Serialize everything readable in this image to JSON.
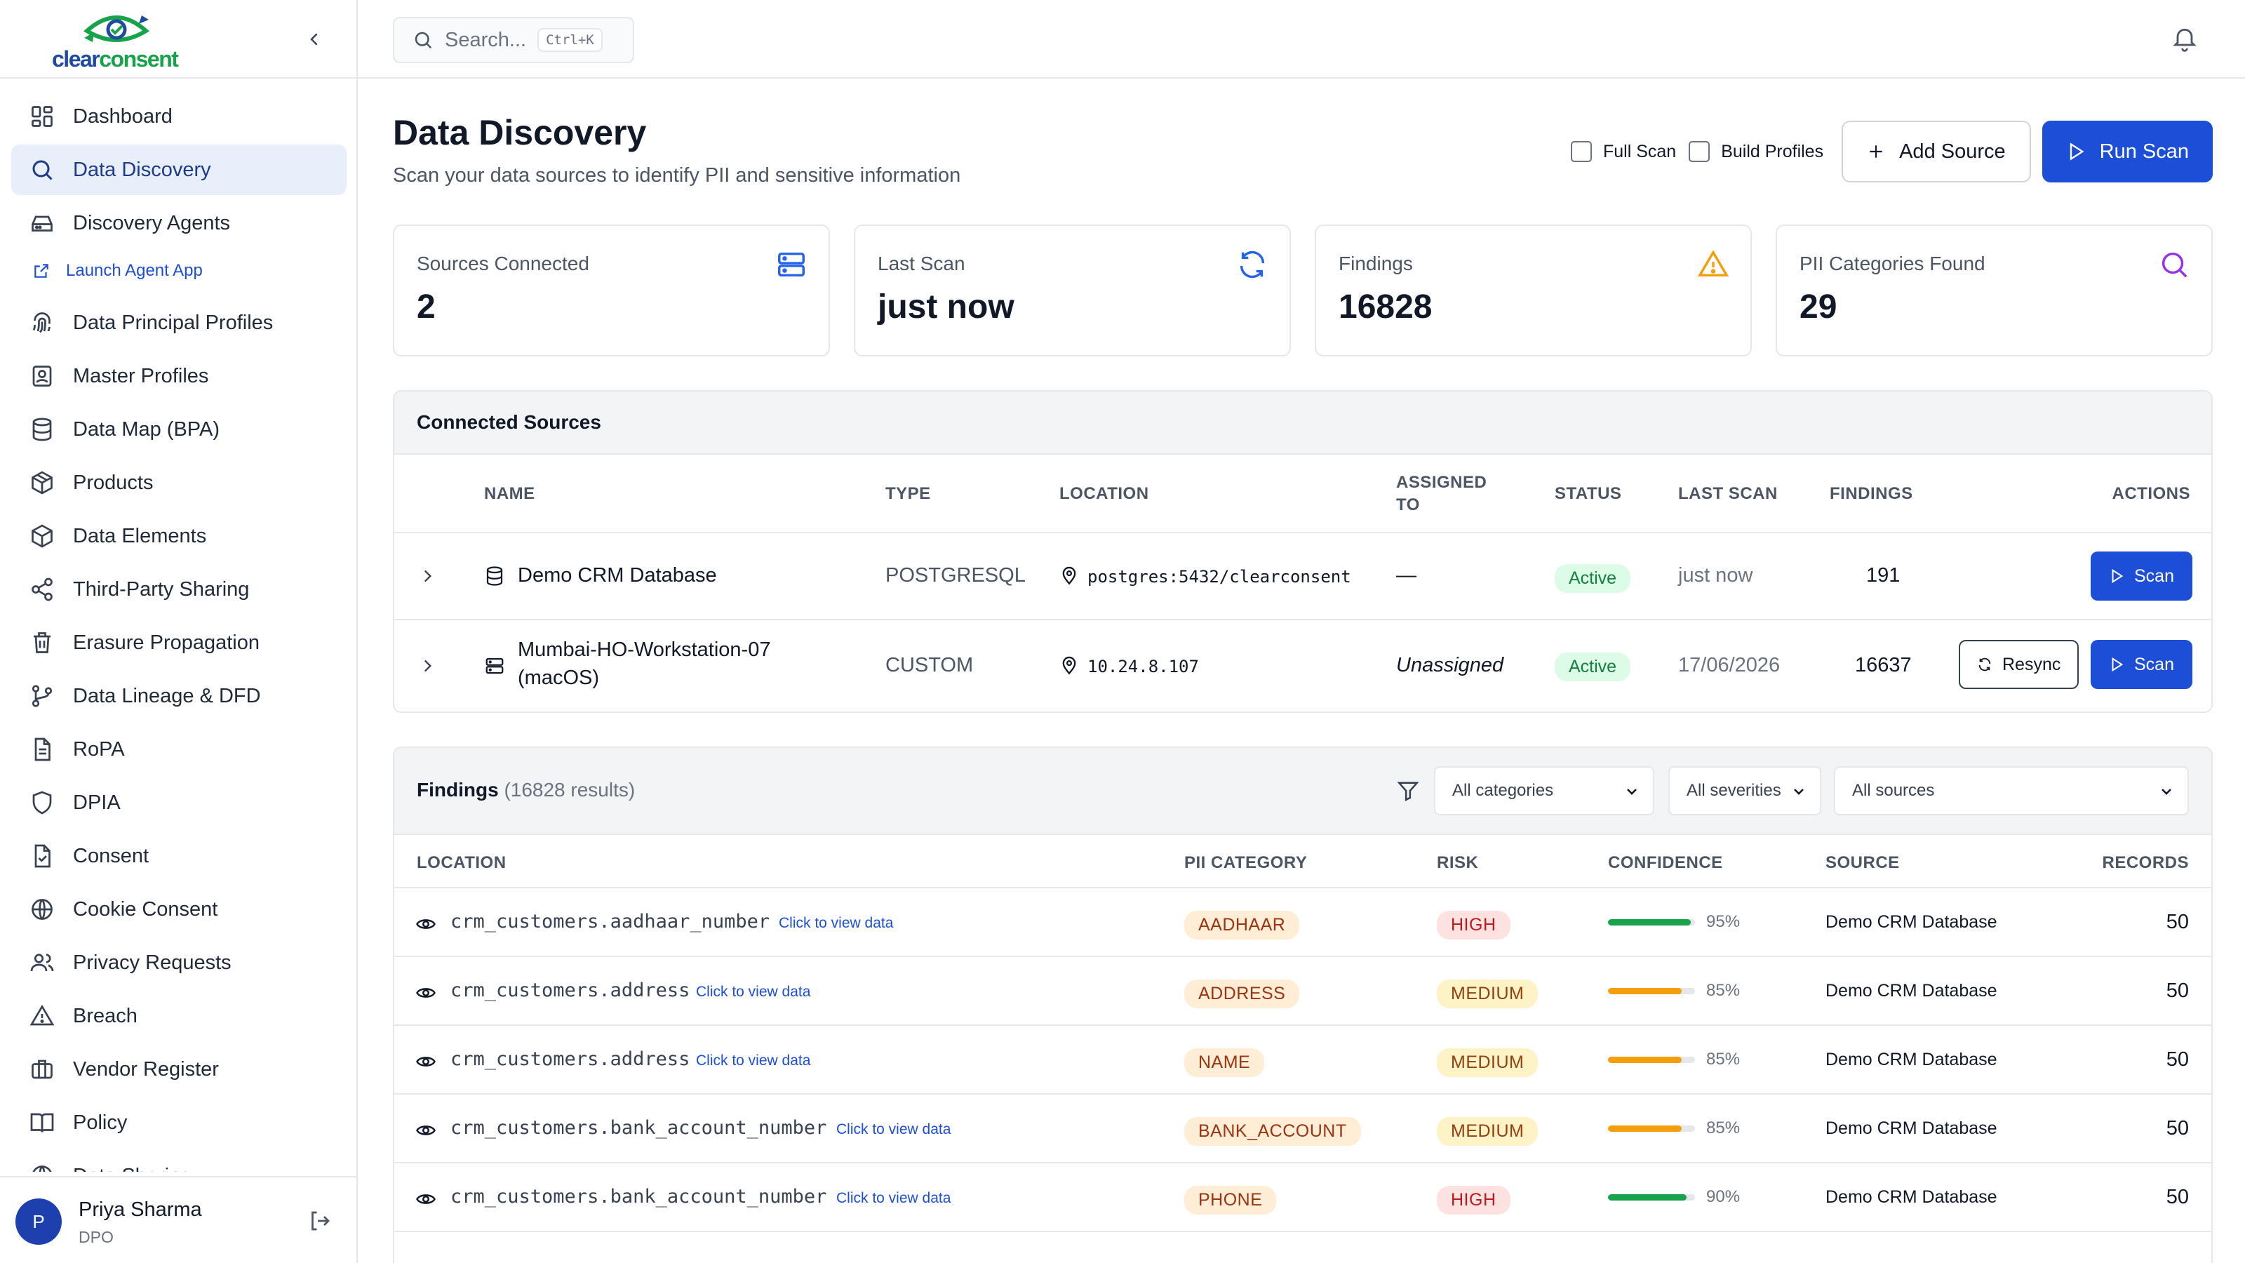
{
  "brand": {
    "logo_text_a": "clear",
    "logo_text_b": "consent"
  },
  "colors": {
    "primary": "#1d4ed8",
    "active_bg": "#e8effb",
    "green": "#16a34a",
    "orange": "#f59e0b",
    "purple": "#9333ea"
  },
  "sidebar": {
    "items": [
      {
        "label": "Dashboard",
        "icon": "dashboard-icon"
      },
      {
        "label": "Data Discovery",
        "icon": "search-icon",
        "active": true
      },
      {
        "label": "Discovery Agents",
        "icon": "hard-drive-icon"
      },
      {
        "label": "Launch Agent App",
        "icon": "external-link-icon",
        "sub": true
      },
      {
        "label": "Data Principal Profiles",
        "icon": "fingerprint-icon"
      },
      {
        "label": "Master Profiles",
        "icon": "contact-icon"
      },
      {
        "label": "Data Map (BPA)",
        "icon": "database-icon"
      },
      {
        "label": "Products",
        "icon": "package-icon"
      },
      {
        "label": "Data Elements",
        "icon": "box-icon"
      },
      {
        "label": "Third-Party Sharing",
        "icon": "share-icon"
      },
      {
        "label": "Erasure Propagation",
        "icon": "trash-icon"
      },
      {
        "label": "Data Lineage & DFD",
        "icon": "git-branch-icon"
      },
      {
        "label": "RoPA",
        "icon": "file-text-icon"
      },
      {
        "label": "DPIA",
        "icon": "shield-icon"
      },
      {
        "label": "Consent",
        "icon": "file-check-icon"
      },
      {
        "label": "Cookie Consent",
        "icon": "globe-icon"
      },
      {
        "label": "Privacy Requests",
        "icon": "users-icon"
      },
      {
        "label": "Breach",
        "icon": "alert-triangle-icon"
      },
      {
        "label": "Vendor Register",
        "icon": "briefcase-icon"
      },
      {
        "label": "Policy",
        "icon": "book-open-icon"
      },
      {
        "label": "Data Sharing",
        "icon": "globe-icon"
      }
    ],
    "user": {
      "initial": "P",
      "name": "Priya Sharma",
      "role": "DPO"
    }
  },
  "topbar": {
    "search_placeholder": "Search...",
    "shortcut": "Ctrl+K"
  },
  "header": {
    "title": "Data Discovery",
    "subtitle": "Scan your data sources to identify PII and sensitive information",
    "full_scan": "Full Scan",
    "build_profiles": "Build Profiles",
    "add_source": "Add Source",
    "run_scan": "Run Scan"
  },
  "stats": [
    {
      "label": "Sources Connected",
      "value": "2",
      "icon": "server-icon"
    },
    {
      "label": "Last Scan",
      "value": "just now",
      "icon": "refresh-icon"
    },
    {
      "label": "Findings",
      "value": "16828",
      "icon": "warning-icon"
    },
    {
      "label": "PII Categories Found",
      "value": "29",
      "icon": "search-icon"
    }
  ],
  "sources": {
    "title": "Connected Sources",
    "columns": {
      "name": "NAME",
      "type": "TYPE",
      "location": "LOCATION",
      "assigned_1": "ASSIGNED",
      "assigned_2": "TO",
      "status": "STATUS",
      "last_scan": "LAST SCAN",
      "findings": "FINDINGS",
      "actions": "ACTIONS"
    },
    "rows": [
      {
        "name": "Demo CRM Database",
        "name2": "",
        "type": "POSTGRESQL",
        "location": "postgres:5432/clearconsent",
        "assigned": "—",
        "status": "Active",
        "last_scan": "just now",
        "findings": "191",
        "scan": "Scan"
      },
      {
        "name": "Mumbai-HO-Workstation-07",
        "name2": "(macOS)",
        "type": "CUSTOM",
        "location": "10.24.8.107",
        "assigned": "Unassigned",
        "status": "Active",
        "last_scan": "17/06/2026",
        "findings": "16637",
        "resync": "Resync",
        "scan": "Scan"
      }
    ]
  },
  "findings": {
    "title": "Findings",
    "count": "(16828 results)",
    "filters": {
      "category": "All categories",
      "severity": "All severities",
      "source": "All sources"
    },
    "columns": {
      "location": "LOCATION",
      "pii_category": "PII CATEGORY",
      "risk": "RISK",
      "confidence": "CONFIDENCE",
      "source": "SOURCE",
      "records": "RECORDS"
    },
    "view_link": "Click to view data",
    "rows": [
      {
        "location": "crm_customers.aadhaar_number",
        "category": "AADHAAR",
        "risk": "HIGH",
        "confidence": 95,
        "confidence_text": "95%",
        "source": "Demo CRM Database",
        "records": "50"
      },
      {
        "location": "crm_customers.address",
        "category": "ADDRESS",
        "risk": "MEDIUM",
        "confidence": 85,
        "confidence_text": "85%",
        "source": "Demo CRM Database",
        "records": "50"
      },
      {
        "location": "crm_customers.address",
        "category": "NAME",
        "risk": "MEDIUM",
        "confidence": 85,
        "confidence_text": "85%",
        "source": "Demo CRM Database",
        "records": "50"
      },
      {
        "location": "crm_customers.bank_account_number",
        "category": "BANK_ACCOUNT",
        "risk": "MEDIUM",
        "confidence": 85,
        "confidence_text": "85%",
        "source": "Demo CRM Database",
        "records": "50"
      },
      {
        "location": "crm_customers.bank_account_number",
        "category": "PHONE",
        "risk": "HIGH",
        "confidence": 90,
        "confidence_text": "90%",
        "source": "Demo CRM Database",
        "records": "50"
      }
    ]
  }
}
